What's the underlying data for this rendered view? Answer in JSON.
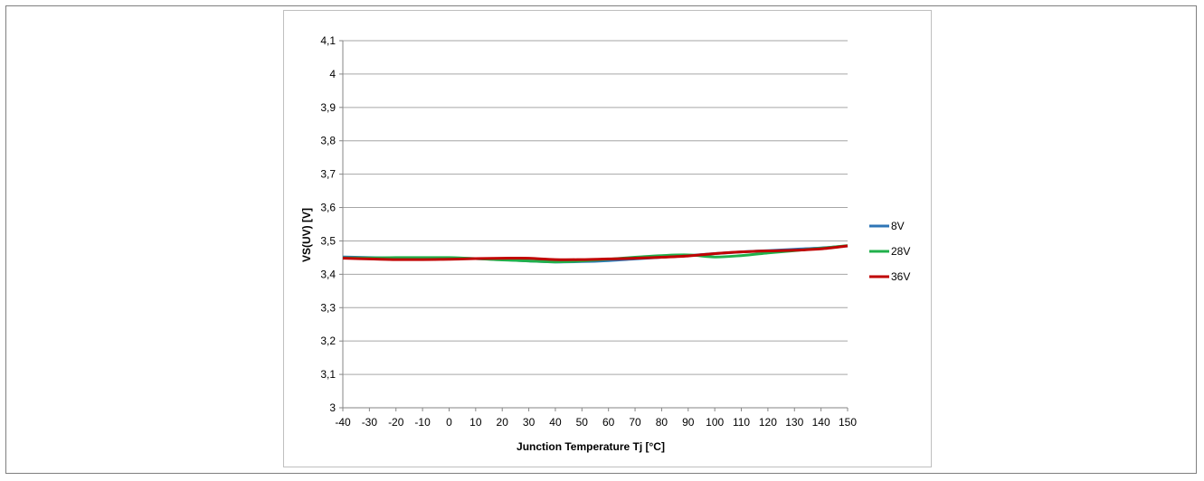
{
  "chart_data": {
    "type": "line",
    "title": "",
    "xlabel": "Junction Temperature Tj [°C]",
    "ylabel": "VS(UV) [V]",
    "x": [
      -40,
      -30,
      -20,
      -10,
      0,
      10,
      20,
      30,
      40,
      50,
      60,
      70,
      80,
      90,
      100,
      110,
      120,
      130,
      140,
      150
    ],
    "x_ticks": [
      "-40",
      "-30",
      "-20",
      "-10",
      "0",
      "10",
      "20",
      "30",
      "40",
      "50",
      "60",
      "70",
      "80",
      "90",
      "100",
      "110",
      "120",
      "130",
      "140",
      "150"
    ],
    "xlim": [
      -40,
      150
    ],
    "ylim": [
      3,
      4.1
    ],
    "y_ticks": [
      3,
      3.1,
      3.2,
      3.3,
      3.4,
      3.5,
      3.6,
      3.7,
      3.8,
      3.9,
      4,
      4.1
    ],
    "y_tick_labels": [
      "3",
      "3,1",
      "3,2",
      "3,3",
      "3,4",
      "3,5",
      "3,6",
      "3,7",
      "3,8",
      "3,9",
      "4",
      "4,1"
    ],
    "grid": "horizontal",
    "legend_position": "right",
    "series": [
      {
        "name": "8V",
        "color": "#2e75b6",
        "values": [
          3.452,
          3.45,
          3.449,
          3.449,
          3.448,
          3.447,
          3.444,
          3.44,
          3.437,
          3.438,
          3.441,
          3.446,
          3.451,
          3.456,
          3.462,
          3.467,
          3.471,
          3.475,
          3.479,
          3.485
        ]
      },
      {
        "name": "28V",
        "color": "#21b04b",
        "values": [
          3.449,
          3.449,
          3.45,
          3.45,
          3.45,
          3.447,
          3.443,
          3.44,
          3.437,
          3.44,
          3.445,
          3.451,
          3.456,
          3.458,
          3.452,
          3.456,
          3.464,
          3.471,
          3.478,
          3.486
        ]
      },
      {
        "name": "36V",
        "color": "#c00000",
        "values": [
          3.448,
          3.446,
          3.444,
          3.444,
          3.445,
          3.447,
          3.448,
          3.448,
          3.444,
          3.444,
          3.446,
          3.448,
          3.451,
          3.455,
          3.462,
          3.467,
          3.47,
          3.472,
          3.476,
          3.485
        ]
      }
    ]
  }
}
